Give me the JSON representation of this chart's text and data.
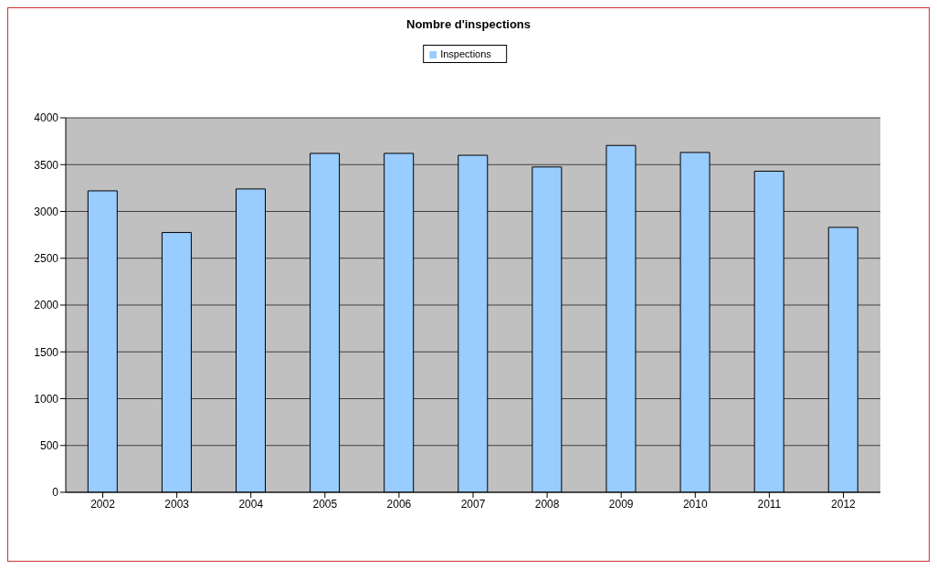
{
  "chart_data": {
    "type": "bar",
    "title": "Nombre d'inspections",
    "categories": [
      "2002",
      "2003",
      "2004",
      "2005",
      "2006",
      "2007",
      "2008",
      "2009",
      "2010",
      "2011",
      "2012"
    ],
    "series": [
      {
        "name": "Inspections",
        "color": "#99ccff",
        "values": [
          3220,
          2775,
          3240,
          3620,
          3620,
          3600,
          3475,
          3705,
          3630,
          3430,
          2830
        ]
      }
    ],
    "ylim": [
      0,
      4000
    ],
    "yticks": [
      0,
      500,
      1000,
      1500,
      2000,
      2500,
      3000,
      3500,
      4000
    ],
    "grid": "y",
    "legend": "top"
  }
}
